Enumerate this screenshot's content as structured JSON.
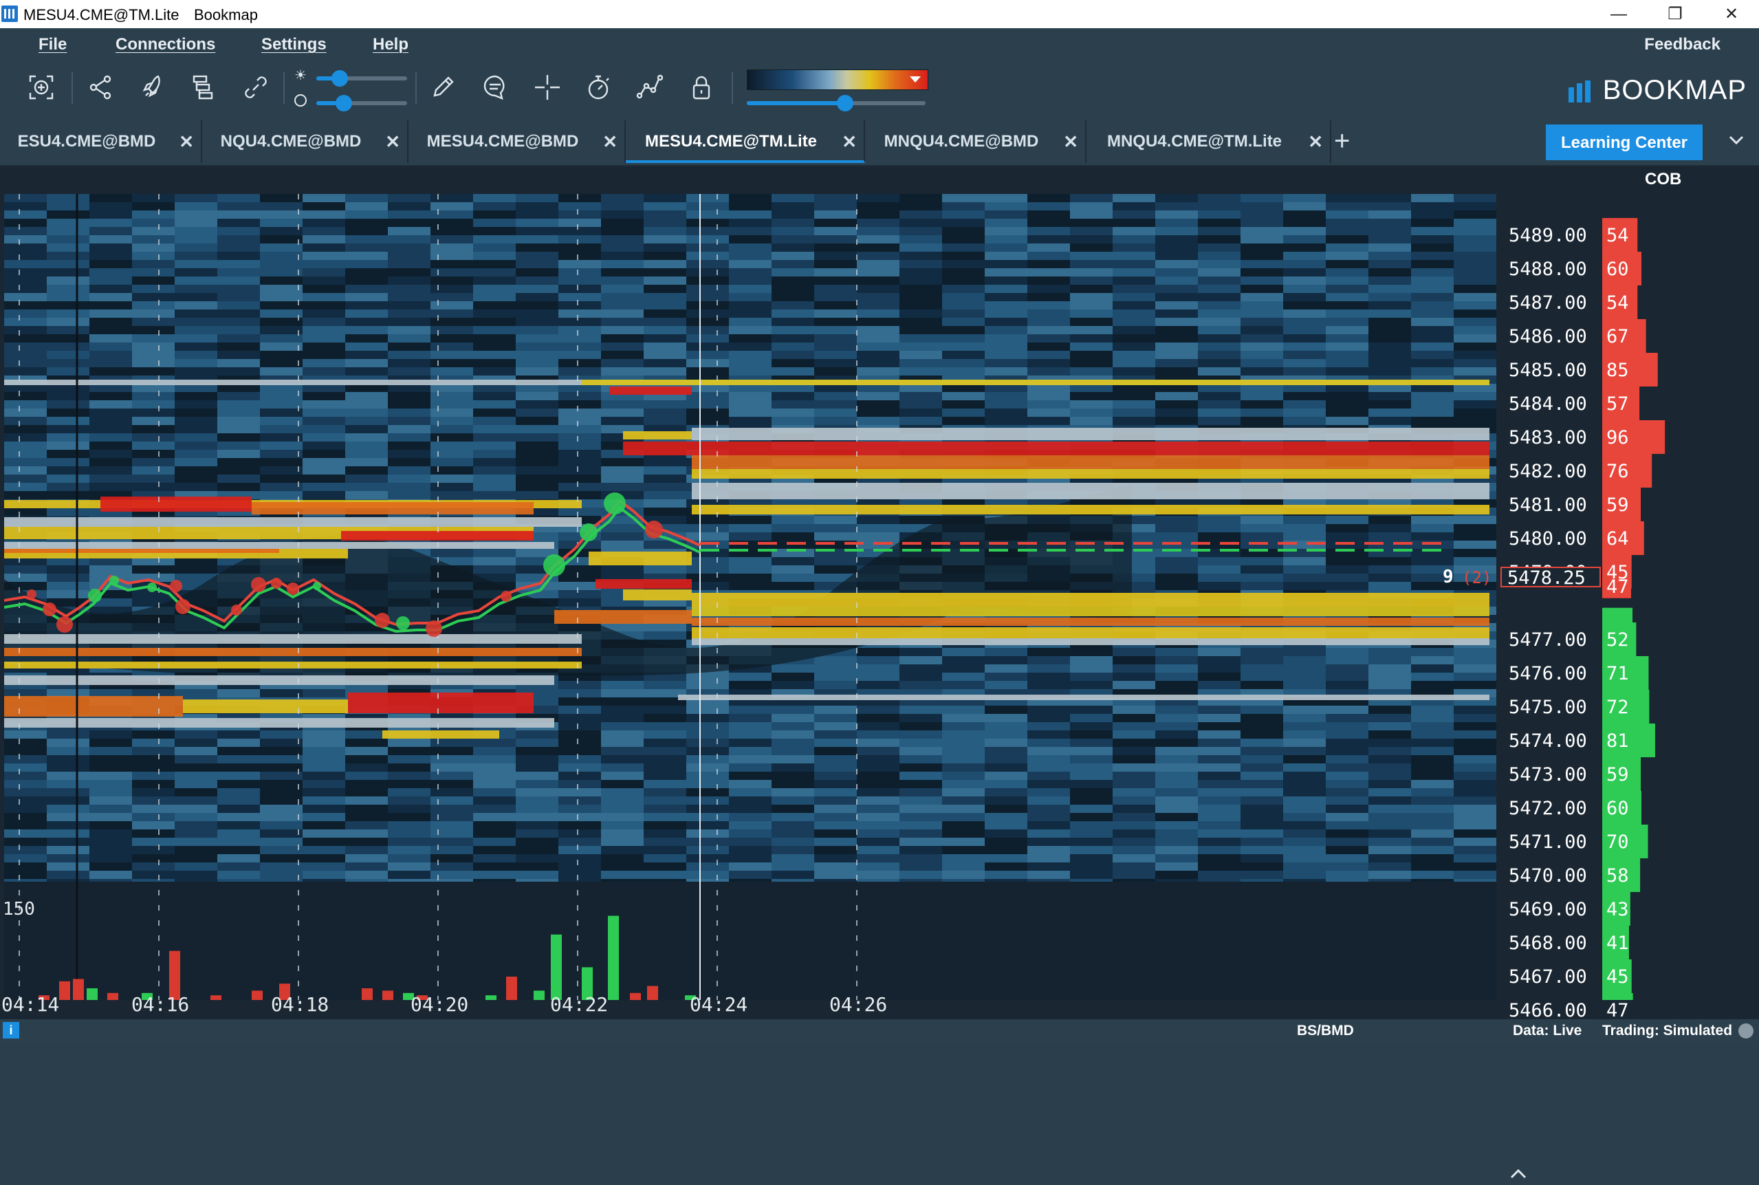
{
  "window": {
    "title": "MESU4.CME@TM.Lite",
    "app_name": "Bookmap",
    "controls": {
      "minimize": "—",
      "restore": "❐",
      "close": "✕"
    }
  },
  "menubar": {
    "items": [
      "File",
      "Connections",
      "Settings",
      "Help"
    ],
    "feedback": "Feedback"
  },
  "toolbar": {
    "icons": [
      "zoom-fit-icon",
      "share-icon",
      "rocket-icon",
      "layers-icon",
      "link-icon",
      "pencil-icon",
      "chat-icon",
      "crosshair-icon",
      "stopwatch-icon",
      "indicator-icon",
      "lock-icon"
    ],
    "brightness_level": 0.26,
    "contrast_level": 0.3,
    "heatmap_range_level": 0.55,
    "colors": {
      "accent": "#1a8fe0",
      "bid": "#2ecc55",
      "ask": "#e8453b"
    }
  },
  "logo": "BOOKMAP",
  "tabs": [
    {
      "label": "ESU4.CME@BMD",
      "active": false
    },
    {
      "label": "NQU4.CME@BMD",
      "active": false
    },
    {
      "label": "MESU4.CME@BMD",
      "active": false
    },
    {
      "label": "MESU4.CME@TM.Lite",
      "active": true
    },
    {
      "label": "MNQU4.CME@BMD",
      "active": false
    },
    {
      "label": "MNQU4.CME@TM.Lite",
      "active": false
    }
  ],
  "tab_close": "✕",
  "add_tab": "+",
  "learning_center": "Learning Center",
  "cob": {
    "header": "COB",
    "asks": [
      {
        "price": "5489.00",
        "size": "54"
      },
      {
        "price": "5488.00",
        "size": "60"
      },
      {
        "price": "5487.00",
        "size": "54"
      },
      {
        "price": "5486.00",
        "size": "67"
      },
      {
        "price": "5485.00",
        "size": "85"
      },
      {
        "price": "5484.00",
        "size": "57"
      },
      {
        "price": "5483.00",
        "size": "96"
      },
      {
        "price": "5482.00",
        "size": "76"
      },
      {
        "price": "5481.00",
        "size": "59"
      },
      {
        "price": "5480.00",
        "size": "64"
      },
      {
        "price": "5479.00",
        "size": "45"
      }
    ],
    "current_price": "5478.25",
    "current_size": "47",
    "bids": [
      {
        "price": "5477.00",
        "size": "52"
      },
      {
        "price": "5476.00",
        "size": "71"
      },
      {
        "price": "5475.00",
        "size": "72"
      },
      {
        "price": "5474.00",
        "size": "81"
      },
      {
        "price": "5473.00",
        "size": "59"
      },
      {
        "price": "5472.00",
        "size": "60"
      },
      {
        "price": "5471.00",
        "size": "70"
      },
      {
        "price": "5470.00",
        "size": "58"
      },
      {
        "price": "5469.00",
        "size": "43"
      },
      {
        "price": "5468.00",
        "size": "41"
      },
      {
        "price": "5467.00",
        "size": "45"
      },
      {
        "price": "5466.00",
        "size": "47"
      }
    ]
  },
  "chart": {
    "last_trade_size": "9",
    "last_trade_count": "(2)",
    "volume_scale": "150",
    "time_labels": [
      "04:14",
      "04:16",
      "04:18",
      "04:20",
      "04:22",
      "04:24",
      "04:26"
    ]
  },
  "status": {
    "datasource": "BS/BMD",
    "data": "Data: Live",
    "trading": "Trading: Simulated"
  }
}
